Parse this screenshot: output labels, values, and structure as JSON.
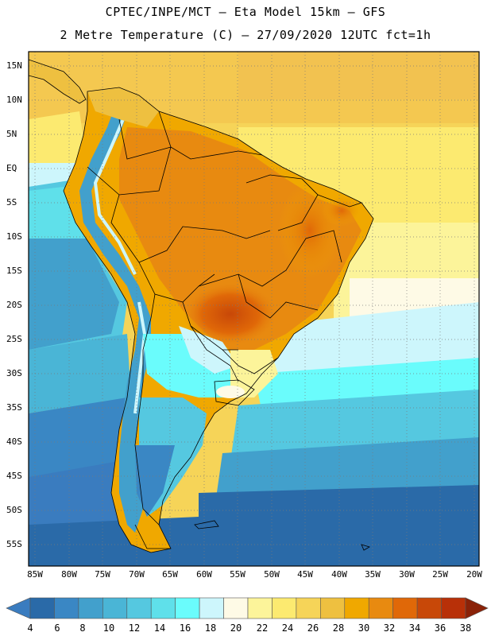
{
  "title_line1": "CPTEC/INPE/MCT –  Eta Model 15km – GFS",
  "title_line2": "2 Metre Temperature (C) – 27/09/2020 12UTC fct=1h",
  "lat_labels": [
    "15N",
    "10N",
    "5N",
    "EQ",
    "5S",
    "10S",
    "15S",
    "20S",
    "25S",
    "30S",
    "35S",
    "40S",
    "45S",
    "50S",
    "55S"
  ],
  "lon_labels": [
    "85W",
    "80W",
    "75W",
    "70W",
    "65W",
    "60W",
    "55W",
    "50W",
    "45W",
    "40W",
    "35W",
    "30W",
    "25W",
    "20W"
  ],
  "colorbar": {
    "labels": [
      "4",
      "6",
      "8",
      "10",
      "12",
      "14",
      "16",
      "18",
      "20",
      "22",
      "24",
      "26",
      "28",
      "30",
      "32",
      "34",
      "36",
      "38"
    ],
    "colors": [
      "#3a7cbf",
      "#2a6aa8",
      "#3a87c4",
      "#42a0cc",
      "#4ab5d6",
      "#55c8e0",
      "#5fe0ea",
      "#6afcfc",
      "#cdf6fc",
      "#fefae6",
      "#fcf49a",
      "#fcea70",
      "#f6d458",
      "#eec040",
      "#f0a800",
      "#e88a10",
      "#e06808",
      "#c84808",
      "#b83008",
      "#8a2208"
    ],
    "range": [
      4,
      38
    ]
  }
}
